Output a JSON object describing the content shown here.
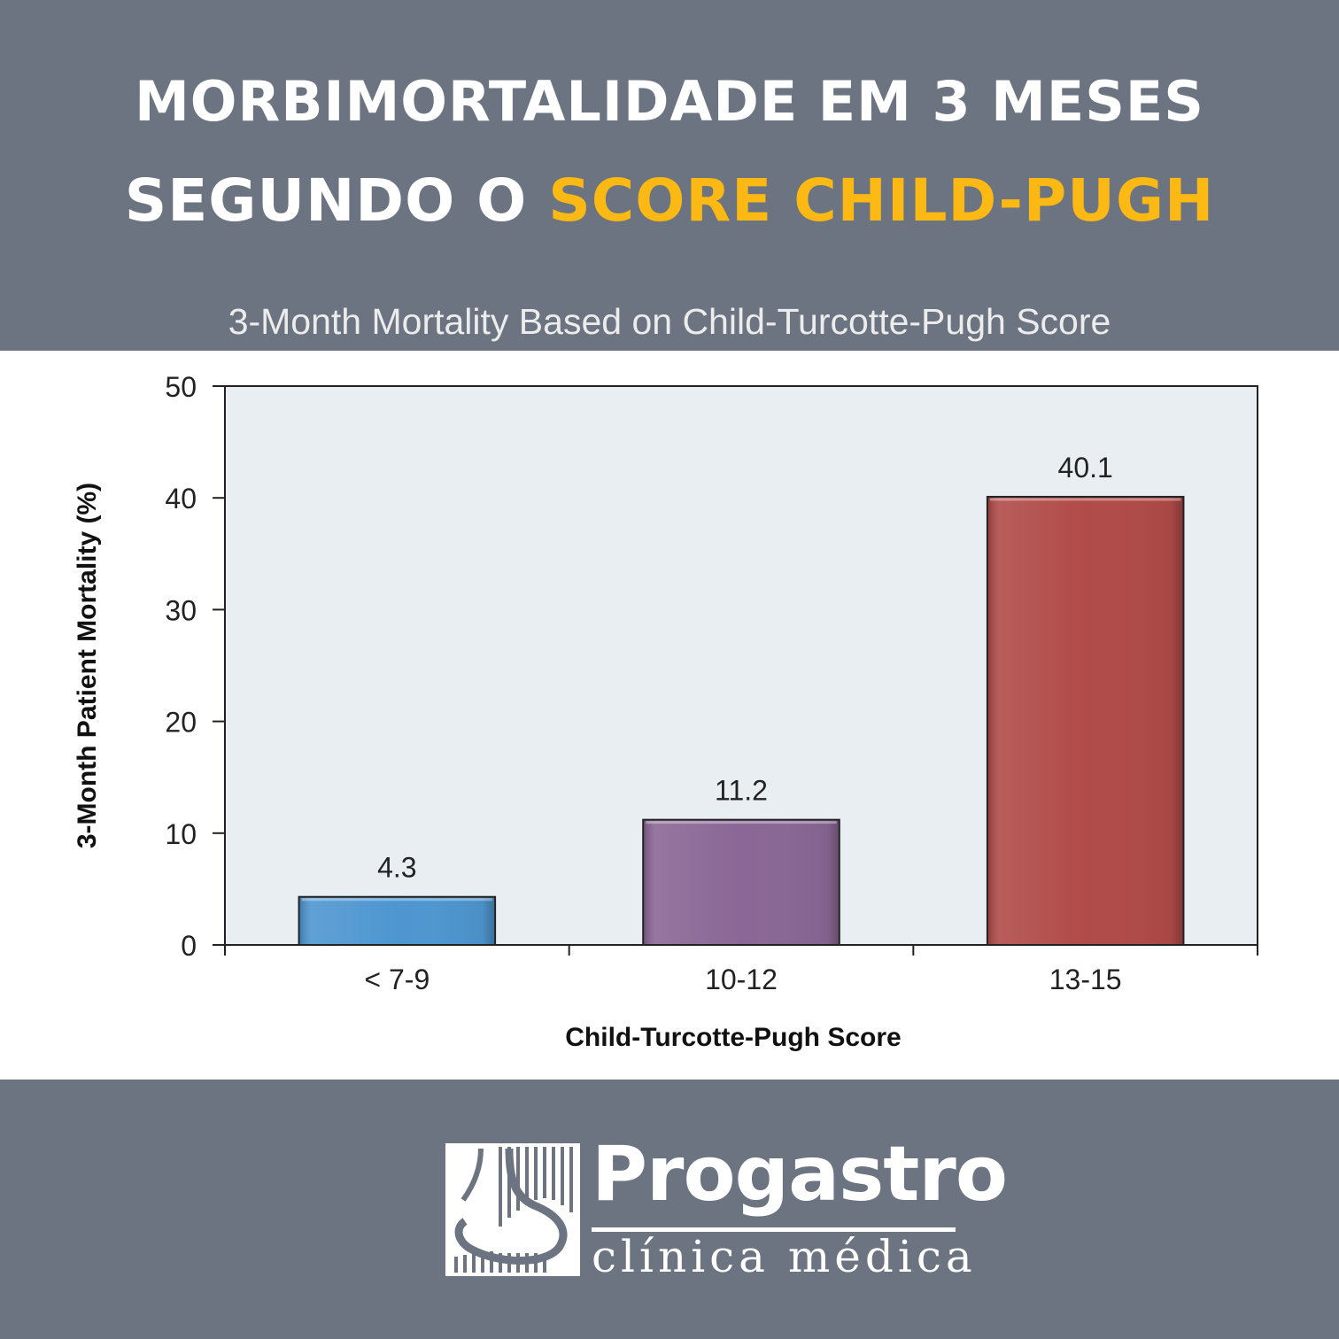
{
  "headline": {
    "line1": "MORBIMORTALIDADE EM 3 MESES",
    "line2_prefix": "SEGUNDO O ",
    "line2_highlight": "SCORE CHILD-PUGH"
  },
  "colors": {
    "background": "#6b7480",
    "highlight": "#fcb813",
    "plot_area": "#e9eef3"
  },
  "chart_data": {
    "type": "bar",
    "title": "3-Month Mortality Based on Child-Turcotte-Pugh Score",
    "xlabel": "Child-Turcotte-Pugh Score",
    "ylabel": "3-Month Patient Mortality (%)",
    "categories": [
      "< 7-9",
      "10-12",
      "13-15"
    ],
    "values": [
      4.3,
      11.2,
      40.1
    ],
    "value_labels": [
      "4.3",
      "11.2",
      "40.1"
    ],
    "bar_colors": [
      "#4e96d0",
      "#8a6796",
      "#b04b48"
    ],
    "ylim": [
      0,
      50
    ],
    "yticks": [
      0,
      10,
      20,
      30,
      40,
      50
    ],
    "grid": false,
    "legend": "none"
  },
  "brand": {
    "name": "Progastro",
    "tagline": "clínica médica",
    "logo_icon": "stomach-logo-icon"
  }
}
